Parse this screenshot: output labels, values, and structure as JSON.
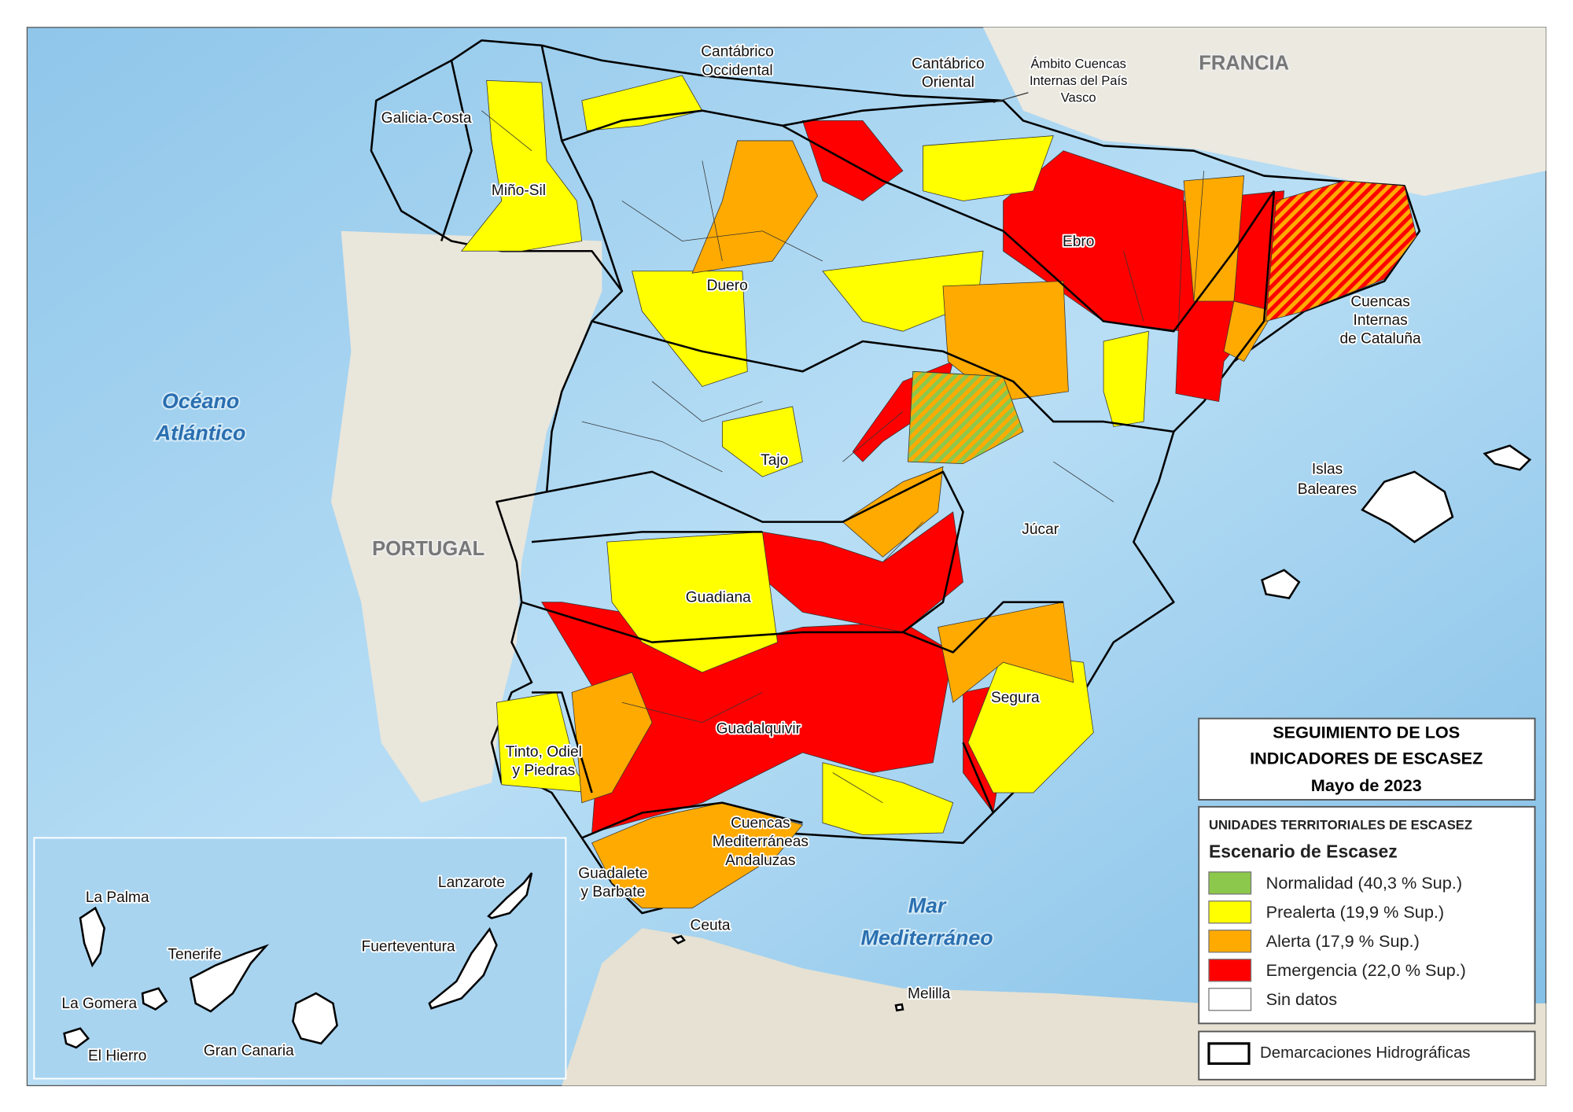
{
  "legend": {
    "title": [
      "SEGUIMIENTO DE LOS",
      "INDICADORES DE ESCASEZ",
      "Mayo de 2023"
    ],
    "heading": "UNIDADES TERRITORIALES DE ESCASEZ",
    "subheading": "Escenario de Escasez",
    "items": [
      {
        "label": "Normalidad (40,3 % Sup.)",
        "color": "#8cc84b"
      },
      {
        "label": "Prealerta (19,9 % Sup.)",
        "color": "#ffff00"
      },
      {
        "label": "Alerta (17,9 % Sup.)",
        "color": "#ffaa00"
      },
      {
        "label": "Emergencia (22,0 % Sup.)",
        "color": "#ff0000"
      },
      {
        "label": "Sin datos",
        "color": "#ffffff"
      }
    ],
    "boundary": "Demarcaciones Hidrográficas"
  },
  "map_labels": {
    "countries": [
      "FRANCIA",
      "PORTUGAL"
    ],
    "seas": [
      [
        "Océano",
        "Atlántico"
      ],
      [
        "Mar",
        "Mediterráneo"
      ]
    ],
    "basins": [
      [
        "Galicia-Costa"
      ],
      [
        "Miño-Sil"
      ],
      [
        "Cantábrico",
        "Occidental"
      ],
      [
        "Cantábrico",
        "Oriental"
      ],
      [
        "Ámbito Cuencas",
        "Internas del País",
        "Vasco"
      ],
      [
        "Ebro"
      ],
      [
        "Cuencas",
        "Internas",
        "de Cataluña"
      ],
      [
        "Duero"
      ],
      [
        "Tajo"
      ],
      [
        "Guadiana"
      ],
      [
        "Júcar"
      ],
      [
        "Segura"
      ],
      [
        "Guadalquivir"
      ],
      [
        "Tinto, Odiel",
        "y Piedras"
      ],
      [
        "Guadalete",
        "y Barbate"
      ],
      [
        "Cuencas",
        "Mediterráneas",
        "Andaluzas"
      ]
    ],
    "places": [
      [
        "Islas",
        "Baleares"
      ],
      [
        "Ceuta"
      ],
      [
        "Melilla"
      ]
    ],
    "canary_islands": [
      "La Palma",
      "Lanzarote",
      "Tenerife",
      "Fuerteventura",
      "La Gomera",
      "El Hierro",
      "Gran Canaria"
    ]
  }
}
